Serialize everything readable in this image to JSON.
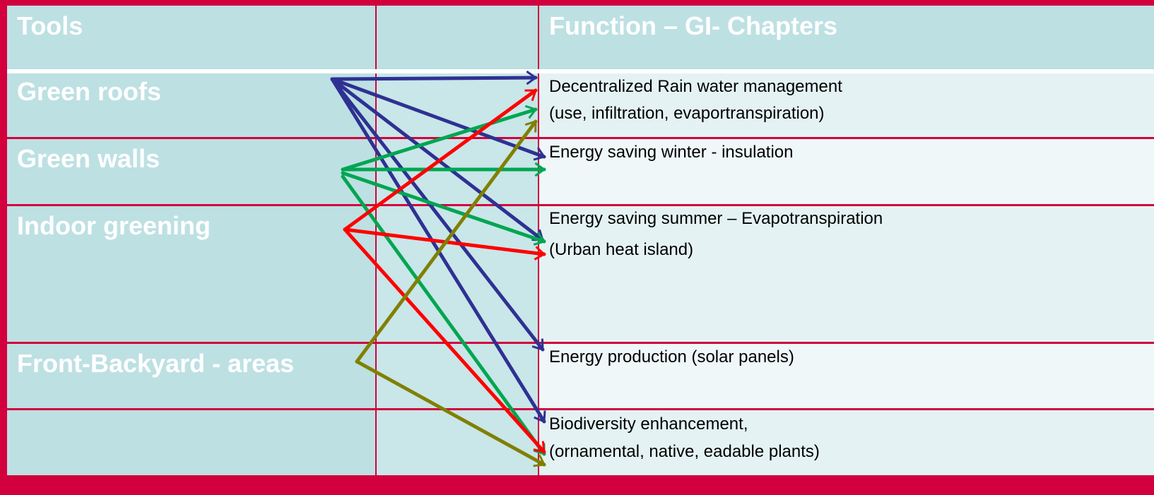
{
  "header": {
    "tools": "Tools",
    "function": "Function – GI- Chapters"
  },
  "rows": [
    {
      "tool": "Green roofs",
      "function": [
        "Decentralized Rain water management",
        "(use, infiltration, evaportranspiration)"
      ]
    },
    {
      "tool": "Green walls",
      "function": [
        "Energy saving winter - insulation"
      ]
    },
    {
      "tool": "Indoor greening",
      "function": [
        "Energy saving summer – Evapotranspiration",
        "(Urban heat island)"
      ]
    },
    {
      "tool": "Front-Backyard - areas",
      "function": [
        "Energy production (solar panels)"
      ]
    },
    {
      "function": [
        "Biodiversity enhancement,",
        "(ornamental, native, eadable plants)"
      ]
    }
  ]
}
